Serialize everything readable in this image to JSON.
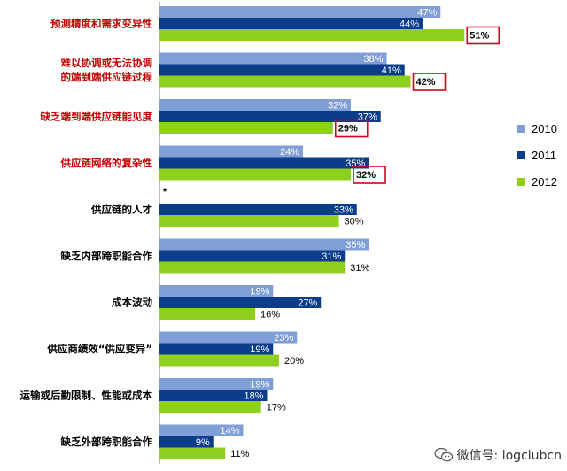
{
  "chart_data": {
    "type": "bar",
    "orientation": "horizontal",
    "categories": [
      {
        "lines": [
          "预测精度和需求变异性"
        ],
        "color": "#c00000"
      },
      {
        "lines": [
          "难以协调或无法协调",
          "的端到端供应链过程"
        ],
        "color": "#c00000"
      },
      {
        "lines": [
          "缺乏端到端供应链能见度"
        ],
        "color": "#c00000"
      },
      {
        "lines": [
          "供应链网络的复杂性"
        ],
        "color": "#c00000"
      },
      {
        "lines": [
          "供应链的人才"
        ],
        "color": "#000000"
      },
      {
        "lines": [
          "缺乏内部跨职能合作"
        ],
        "color": "#000000"
      },
      {
        "lines": [
          "成本波动"
        ],
        "color": "#000000"
      },
      {
        "lines": [
          "供应商绩效“供应变异”"
        ],
        "color": "#000000"
      },
      {
        "lines": [
          "运输或后勤限制、性能或成本"
        ],
        "color": "#000000"
      },
      {
        "lines": [
          "缺乏外部跨职能合作"
        ],
        "color": "#000000"
      }
    ],
    "series": [
      {
        "name": "2010",
        "color": "#7f9fd6",
        "values": [
          47,
          38,
          32,
          24,
          null,
          35,
          19,
          23,
          19,
          14
        ]
      },
      {
        "name": "2011",
        "color": "#0c3d8a",
        "values": [
          44,
          41,
          37,
          35,
          33,
          31,
          27,
          19,
          18,
          9
        ]
      },
      {
        "name": "2012",
        "color": "#8fcf1e",
        "values": [
          51,
          42,
          29,
          32,
          30,
          31,
          16,
          20,
          17,
          11
        ]
      }
    ],
    "highlighted_2012": [
      true,
      true,
      true,
      true,
      false,
      false,
      false,
      false,
      false,
      false
    ],
    "highlight_color": "#d0021b",
    "annotation": "*",
    "annotation_category_index": 4,
    "value_suffix": "%",
    "legend_position": "right",
    "grid": false
  },
  "watermark": {
    "text": "微信号: logclubcn",
    "icon": "wechat-icon"
  }
}
